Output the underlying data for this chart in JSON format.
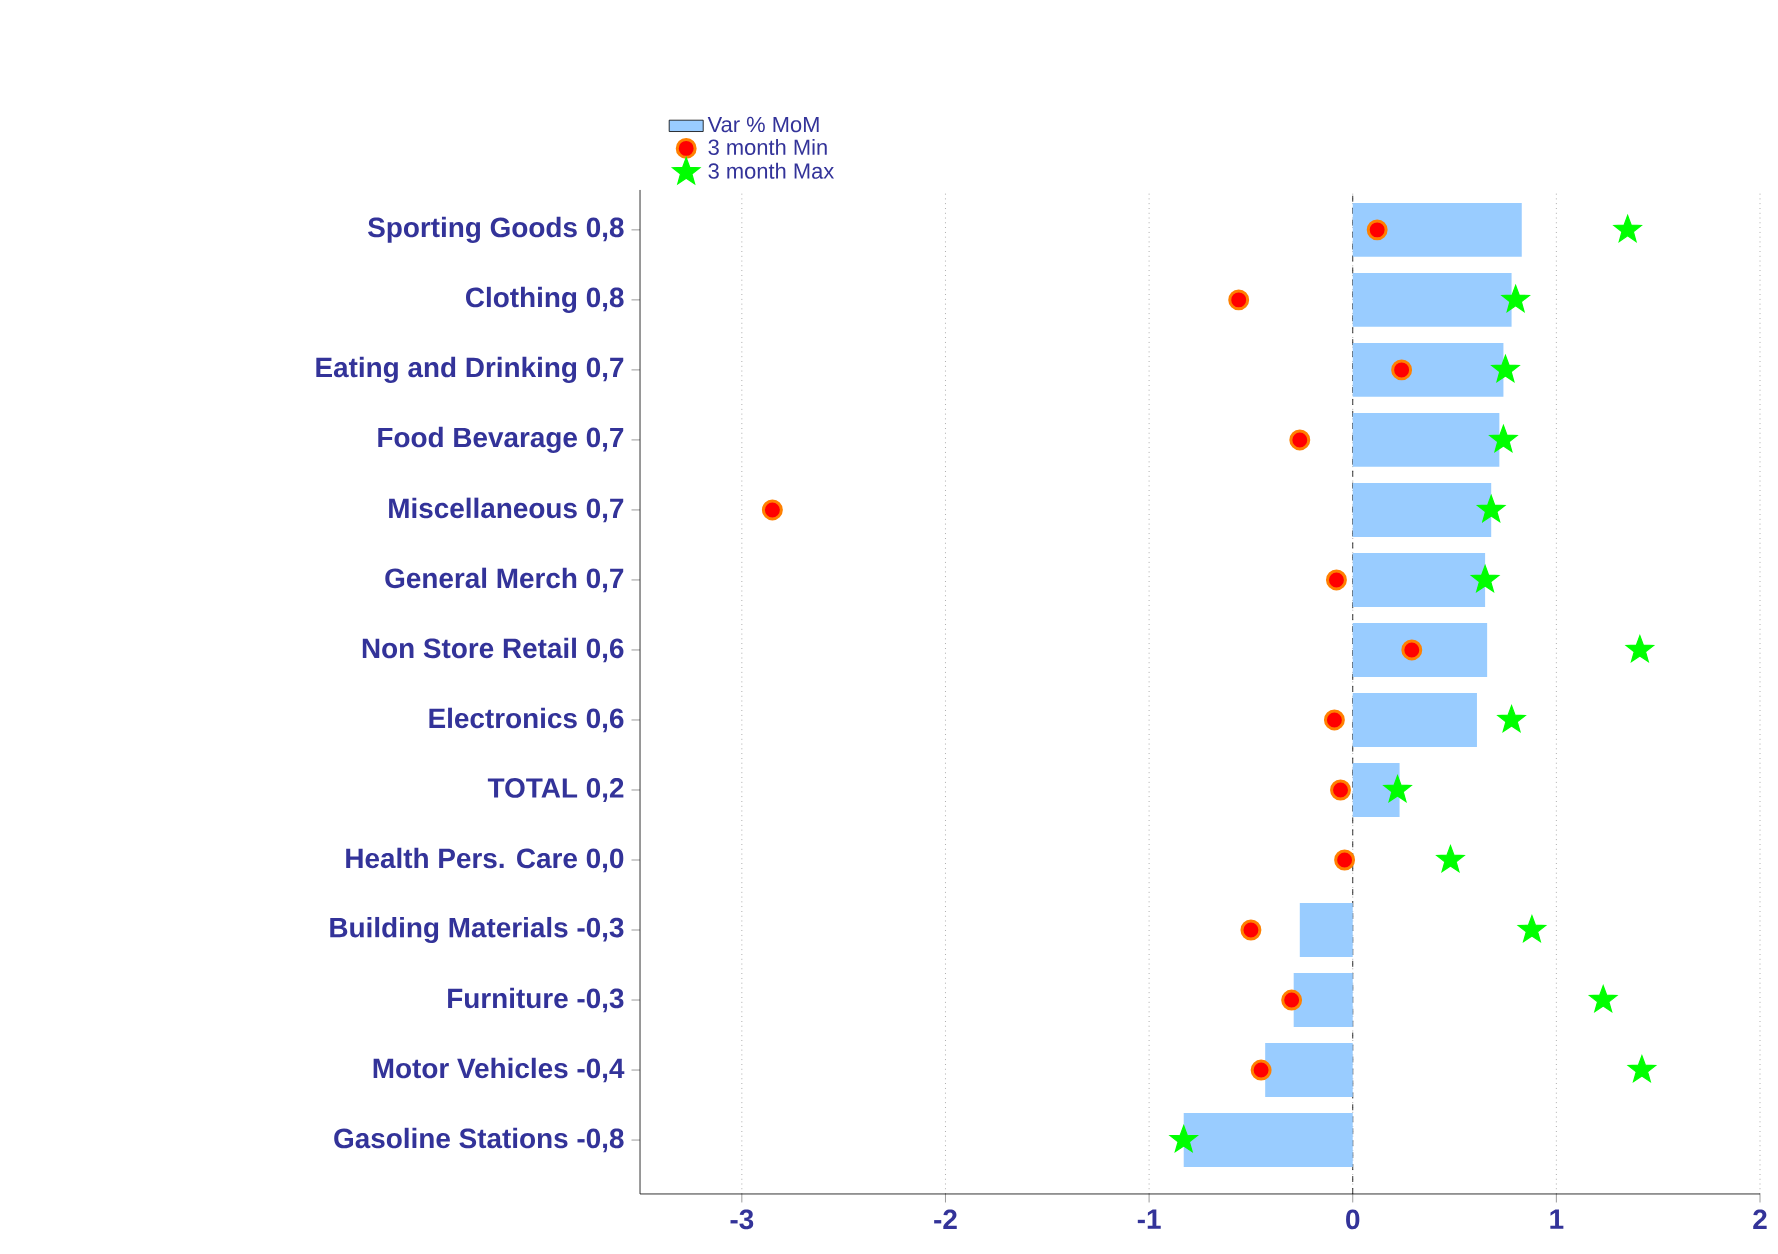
{
  "chart_data": {
    "type": "bar",
    "orientation": "horizontal",
    "categories": [
      "Sporting Goods 0,8",
      "Clothing  0,8",
      "Eating and Drinking 0,7",
      "Food Bevarage 0,7",
      "Miscellaneous  0,7",
      "General Merch 0,7",
      "Non Store Retail 0,6",
      "Electronics 0,6",
      "TOTAL 0,2",
      "Health Pers. Care 0,0",
      "Building Materials -0,3",
      "Furniture -0,3",
      "Motor Vehicles -0,4",
      "Gasoline Stations  -0,8"
    ],
    "series": [
      {
        "name": "Var % MoM",
        "color": "#99ccff",
        "values": [
          0.83,
          0.78,
          0.74,
          0.72,
          0.68,
          0.65,
          0.66,
          0.61,
          0.23,
          0.0,
          -0.26,
          -0.29,
          -0.43,
          -0.83
        ]
      },
      {
        "name": "3 month Min",
        "type": "scatter",
        "marker": "circle",
        "color": "#ff0000",
        "values": [
          0.12,
          -0.56,
          0.24,
          -0.26,
          -2.85,
          -0.08,
          0.29,
          -0.09,
          -0.06,
          -0.04,
          -0.5,
          -0.3,
          -0.45,
          null
        ]
      },
      {
        "name": "3 month Max",
        "type": "scatter",
        "marker": "star",
        "color": "#00ff00",
        "values": [
          1.35,
          0.8,
          0.75,
          0.74,
          0.68,
          0.65,
          1.41,
          0.78,
          0.22,
          0.48,
          0.88,
          1.23,
          1.42,
          -0.83
        ]
      }
    ],
    "xlim": [
      -3.5,
      2
    ],
    "xticks": [
      -3,
      -2,
      -1,
      0,
      1,
      2
    ],
    "grid": "x",
    "legend": "top",
    "ref_lines": [
      {
        "axis": "x",
        "value": 0,
        "color": "#000000",
        "line_style": "dashed"
      }
    ]
  }
}
